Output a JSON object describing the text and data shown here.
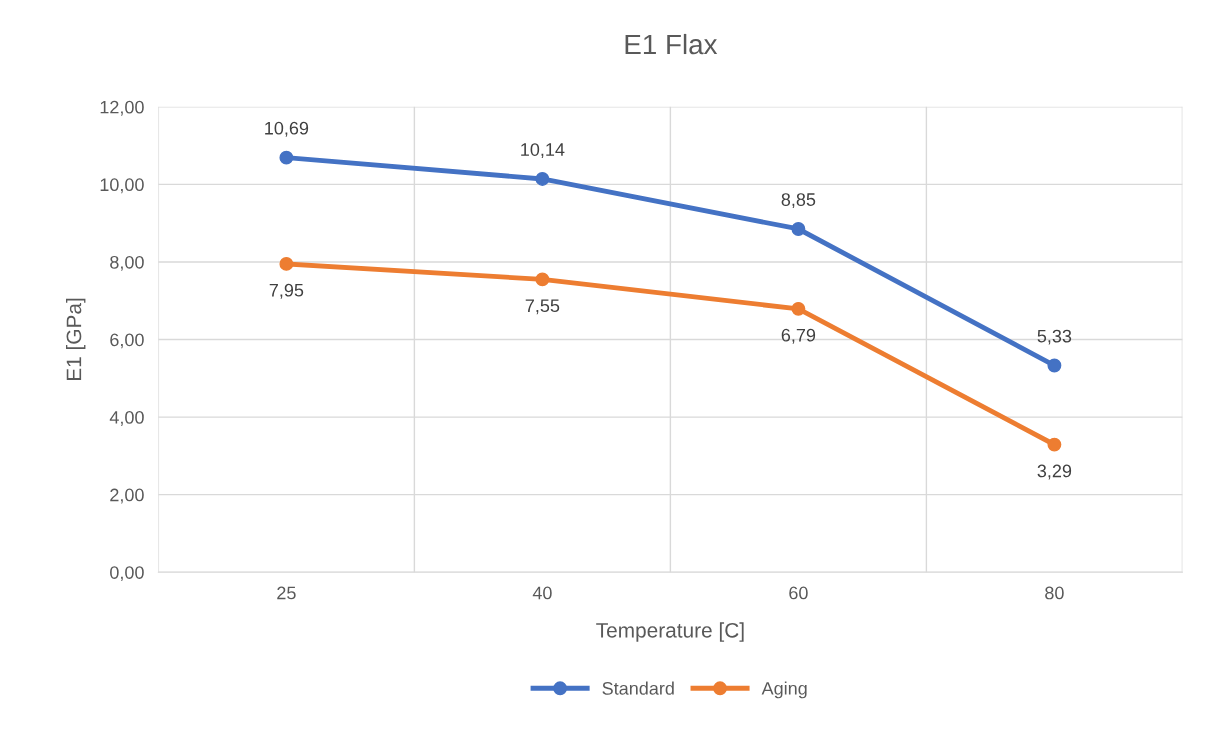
{
  "chart_data": {
    "type": "line",
    "title": "E1 Flax",
    "xlabel": "Temperature [C]",
    "ylabel": "E1 [GPa]",
    "categories": [
      "25",
      "40",
      "60",
      "80"
    ],
    "series": [
      {
        "name": "Standard",
        "color": "#4472c4",
        "values": [
          10.69,
          10.14,
          8.85,
          5.33
        ],
        "value_labels": [
          "10,69",
          "10,14",
          "8,85",
          "5,33"
        ]
      },
      {
        "name": "Aging",
        "color": "#ed7d31",
        "values": [
          7.95,
          7.55,
          6.79,
          3.29
        ],
        "value_labels": [
          "7,95",
          "7,55",
          "6,79",
          "3,29"
        ]
      }
    ],
    "ylim": [
      0,
      12
    ],
    "yticks": [
      {
        "value": 0,
        "label": "0,00"
      },
      {
        "value": 2,
        "label": "2,00"
      },
      {
        "value": 4,
        "label": "4,00"
      },
      {
        "value": 6,
        "label": "6,00"
      },
      {
        "value": 8,
        "label": "8,00"
      },
      {
        "value": 10,
        "label": "10,00"
      },
      {
        "value": 12,
        "label": "12,00"
      }
    ],
    "grid": true,
    "legend": "bottom",
    "marker": "circle",
    "line_style": "solid"
  }
}
